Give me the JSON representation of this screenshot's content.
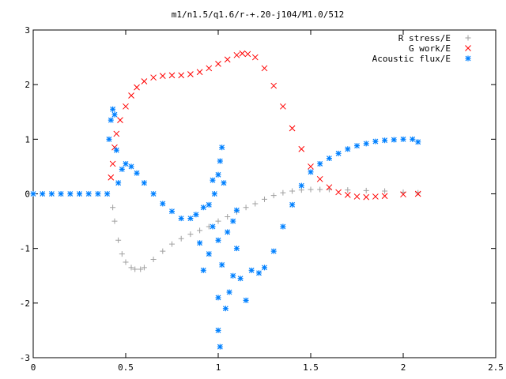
{
  "chart_data": {
    "type": "scatter",
    "title": "m1/n1.5/q1.6/r-+.20-j104/M1.0/512",
    "xlabel": "",
    "ylabel": "",
    "xlim": [
      0,
      2.5
    ],
    "ylim": [
      -3,
      3
    ],
    "x_ticks": [
      0,
      0.5,
      1,
      1.5,
      2,
      2.5
    ],
    "x_tick_labels": [
      "0",
      "0.5",
      "1",
      "1.5",
      "2",
      "2.5"
    ],
    "y_ticks": [
      -3,
      -2,
      -1,
      0,
      1,
      2,
      3
    ],
    "y_tick_labels": [
      "-3",
      "-2",
      "-1",
      "0",
      "1",
      "2",
      "3"
    ],
    "grid": false,
    "legend_position": "top-right",
    "series": [
      {
        "name": "R stress/E",
        "marker": "plus",
        "color": "#a0a0a0",
        "points": [
          [
            0.43,
            -0.25
          ],
          [
            0.44,
            -0.5
          ],
          [
            0.46,
            -0.85
          ],
          [
            0.48,
            -1.1
          ],
          [
            0.5,
            -1.25
          ],
          [
            0.53,
            -1.35
          ],
          [
            0.55,
            -1.38
          ],
          [
            0.58,
            -1.38
          ],
          [
            0.6,
            -1.35
          ],
          [
            0.65,
            -1.2
          ],
          [
            0.7,
            -1.05
          ],
          [
            0.75,
            -0.92
          ],
          [
            0.8,
            -0.82
          ],
          [
            0.85,
            -0.74
          ],
          [
            0.9,
            -0.67
          ],
          [
            0.95,
            -0.6
          ],
          [
            1.0,
            -0.5
          ],
          [
            1.05,
            -0.42
          ],
          [
            1.1,
            -0.33
          ],
          [
            1.15,
            -0.25
          ],
          [
            1.2,
            -0.18
          ],
          [
            1.25,
            -0.1
          ],
          [
            1.3,
            -0.03
          ],
          [
            1.35,
            0.02
          ],
          [
            1.4,
            0.05
          ],
          [
            1.45,
            0.07
          ],
          [
            1.5,
            0.08
          ],
          [
            1.55,
            0.08
          ],
          [
            1.6,
            0.08
          ],
          [
            1.7,
            0.07
          ],
          [
            1.8,
            0.06
          ],
          [
            1.9,
            0.05
          ],
          [
            2.0,
            0.03
          ],
          [
            2.08,
            0.02
          ]
        ]
      },
      {
        "name": "G work/E",
        "marker": "cross",
        "color": "#ff0000",
        "points": [
          [
            0.42,
            0.3
          ],
          [
            0.43,
            0.55
          ],
          [
            0.44,
            0.85
          ],
          [
            0.45,
            1.1
          ],
          [
            0.47,
            1.35
          ],
          [
            0.5,
            1.6
          ],
          [
            0.53,
            1.8
          ],
          [
            0.56,
            1.95
          ],
          [
            0.6,
            2.06
          ],
          [
            0.65,
            2.13
          ],
          [
            0.7,
            2.16
          ],
          [
            0.75,
            2.17
          ],
          [
            0.8,
            2.17
          ],
          [
            0.85,
            2.19
          ],
          [
            0.9,
            2.23
          ],
          [
            0.95,
            2.3
          ],
          [
            1.0,
            2.38
          ],
          [
            1.05,
            2.46
          ],
          [
            1.1,
            2.54
          ],
          [
            1.13,
            2.57
          ],
          [
            1.16,
            2.56
          ],
          [
            1.2,
            2.5
          ],
          [
            1.25,
            2.3
          ],
          [
            1.3,
            1.98
          ],
          [
            1.35,
            1.6
          ],
          [
            1.4,
            1.2
          ],
          [
            1.45,
            0.82
          ],
          [
            1.5,
            0.5
          ],
          [
            1.55,
            0.27
          ],
          [
            1.6,
            0.12
          ],
          [
            1.65,
            0.03
          ],
          [
            1.7,
            -0.02
          ],
          [
            1.75,
            -0.05
          ],
          [
            1.8,
            -0.06
          ],
          [
            1.85,
            -0.05
          ],
          [
            1.9,
            -0.04
          ],
          [
            2.0,
            -0.01
          ],
          [
            2.08,
            0.0
          ]
        ]
      },
      {
        "name": "Acoustic flux/E",
        "marker": "star",
        "color": "#0080ff",
        "points": [
          [
            0.0,
            0.0
          ],
          [
            0.05,
            0.0
          ],
          [
            0.1,
            0.0
          ],
          [
            0.15,
            0.0
          ],
          [
            0.2,
            0.0
          ],
          [
            0.25,
            0.0
          ],
          [
            0.3,
            0.0
          ],
          [
            0.35,
            0.0
          ],
          [
            0.4,
            0.0
          ],
          [
            0.41,
            1.0
          ],
          [
            0.42,
            1.35
          ],
          [
            0.43,
            1.55
          ],
          [
            0.44,
            1.45
          ],
          [
            0.45,
            0.8
          ],
          [
            0.46,
            0.2
          ],
          [
            0.48,
            0.45
          ],
          [
            0.5,
            0.55
          ],
          [
            0.53,
            0.5
          ],
          [
            0.56,
            0.38
          ],
          [
            0.6,
            0.2
          ],
          [
            0.65,
            0.0
          ],
          [
            0.7,
            -0.18
          ],
          [
            0.75,
            -0.32
          ],
          [
            0.8,
            -0.45
          ],
          [
            0.85,
            -0.45
          ],
          [
            0.88,
            -0.38
          ],
          [
            0.92,
            -0.25
          ],
          [
            0.95,
            -0.2
          ],
          [
            0.9,
            -0.9
          ],
          [
            0.92,
            -1.4
          ],
          [
            0.95,
            -1.1
          ],
          [
            0.97,
            -0.6
          ],
          [
            1.0,
            -0.85
          ],
          [
            1.0,
            -1.9
          ],
          [
            1.02,
            -1.3
          ],
          [
            1.05,
            -0.7
          ],
          [
            1.08,
            -1.5
          ],
          [
            1.1,
            -1.0
          ],
          [
            1.12,
            -1.55
          ],
          [
            1.15,
            -1.95
          ],
          [
            1.18,
            -1.4
          ],
          [
            1.22,
            -1.45
          ],
          [
            1.25,
            -1.35
          ],
          [
            1.3,
            -1.05
          ],
          [
            1.35,
            -0.6
          ],
          [
            1.4,
            -0.2
          ],
          [
            1.45,
            0.15
          ],
          [
            1.5,
            0.4
          ],
          [
            1.55,
            0.55
          ],
          [
            1.6,
            0.65
          ],
          [
            1.65,
            0.74
          ],
          [
            1.7,
            0.82
          ],
          [
            1.75,
            0.88
          ],
          [
            1.8,
            0.92
          ],
          [
            1.85,
            0.96
          ],
          [
            1.9,
            0.98
          ],
          [
            1.95,
            0.99
          ],
          [
            2.0,
            1.0
          ],
          [
            2.05,
            1.0
          ],
          [
            2.08,
            0.95
          ],
          [
            0.97,
            0.25
          ],
          [
            0.98,
            0.0
          ],
          [
            1.0,
            0.35
          ],
          [
            1.01,
            0.6
          ],
          [
            1.02,
            0.85
          ],
          [
            1.03,
            0.2
          ],
          [
            1.0,
            -2.5
          ],
          [
            1.01,
            -2.8
          ],
          [
            1.04,
            -2.1
          ],
          [
            1.06,
            -1.8
          ],
          [
            1.08,
            -0.5
          ],
          [
            1.1,
            -0.3
          ]
        ]
      }
    ]
  }
}
